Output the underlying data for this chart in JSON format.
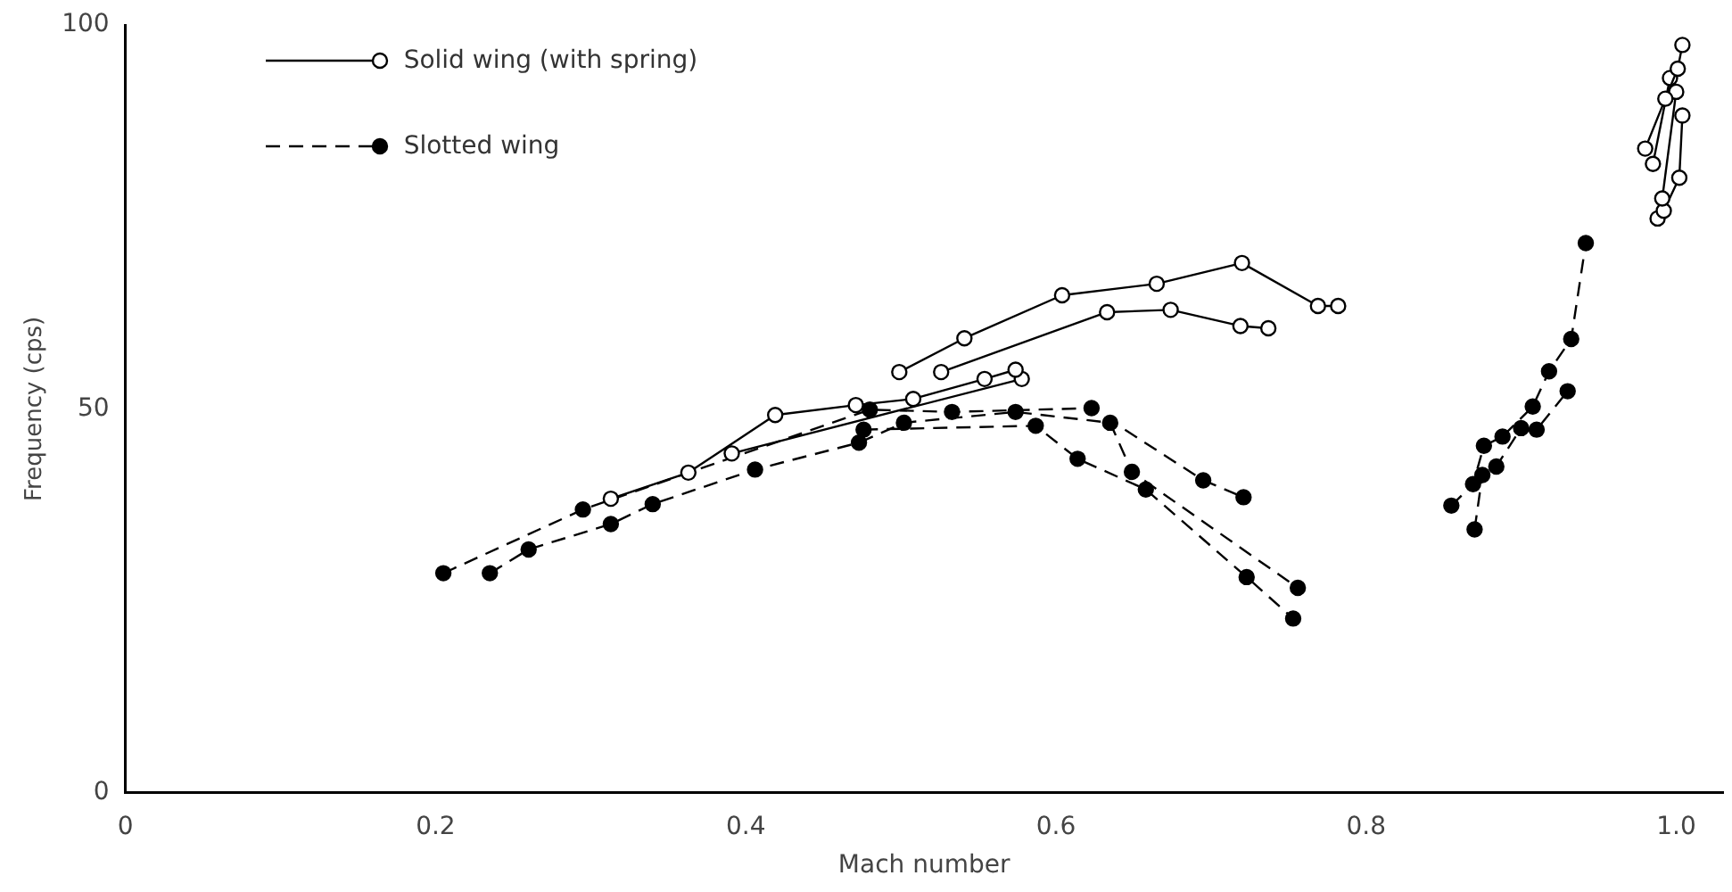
{
  "chart_data": {
    "type": "line",
    "xlabel": "Mach number",
    "ylabel": "Frequency (cps)",
    "xlim": [
      0,
      1.03
    ],
    "xticks": [
      0,
      0.2,
      0.4,
      0.6,
      0.8,
      {
        "value": 1,
        "label": "1.0"
      }
    ],
    "ylim": [
      0,
      100
    ],
    "yticks": [
      0,
      50,
      100
    ],
    "grid": false,
    "legend": "top left",
    "marker": "circle",
    "series": [
      {
        "name": "Solid wing (with spring)",
        "color": "#000000",
        "line_style": "solid",
        "x": [
          0.313,
          0.363,
          0.419,
          0.471,
          0.508,
          0.554,
          0.574
        ],
        "values": [
          38.3,
          41.7,
          49.2,
          50.5,
          51.3,
          53.9,
          55.1
        ]
      },
      {
        "color": "#000000",
        "line_style": "solid",
        "x": [
          0.391,
          0.578
        ],
        "values": [
          44.2,
          53.9
        ]
      },
      {
        "color": "#000000",
        "line_style": "solid",
        "x": [
          0.499,
          0.541,
          0.604,
          0.665,
          0.72,
          0.769,
          0.782
        ],
        "values": [
          54.8,
          59.2,
          64.8,
          66.3,
          69,
          63.4,
          63.4
        ]
      },
      {
        "color": "#000000",
        "line_style": "solid",
        "x": [
          0.526,
          0.633,
          0.674,
          0.719,
          0.737
        ],
        "values": [
          54.8,
          62.6,
          62.9,
          60.8,
          60.5
        ]
      },
      {
        "color": "#000000",
        "line_style": "solid",
        "x": [
          0.98,
          0.993,
          1.001,
          1.004
        ],
        "values": [
          83.9,
          90.4,
          94.3,
          97.4
        ]
      },
      {
        "color": "#000000",
        "line_style": "solid",
        "x": [
          0.985,
          0.996
        ],
        "values": [
          81.9,
          93.1
        ]
      },
      {
        "color": "#000000",
        "line_style": "solid",
        "x": [
          0.991,
          1.0
        ],
        "values": [
          77.4,
          91.3
        ]
      },
      {
        "color": "#000000",
        "line_style": "solid",
        "x": [
          0.988,
          0.992,
          1.002,
          1.004
        ],
        "values": [
          74.8,
          75.8,
          80.1,
          88.2
        ]
      },
      {
        "name": "Slotted wing",
        "color": "#000000",
        "line_style": "dashed",
        "x": [
          0.205,
          0.295,
          0.48,
          0.533,
          0.623,
          0.695,
          0.721
        ],
        "values": [
          28.6,
          36.9,
          49.9,
          49.6,
          50.1,
          40.7,
          38.5
        ]
      },
      {
        "color": "#000000",
        "line_style": "dashed",
        "x": [
          0.235,
          0.26,
          0.313,
          0.34,
          0.406,
          0.473,
          0.502,
          0.574,
          0.635,
          0.649,
          0.756
        ],
        "values": [
          28.6,
          31.7,
          35.0,
          37.6,
          42.1,
          45.6,
          48.2,
          49.6,
          48.2,
          41.8,
          26.7
        ]
      },
      {
        "color": "#000000",
        "line_style": "dashed",
        "x": [
          0.476,
          0.587,
          0.614,
          0.658,
          0.723,
          0.753
        ],
        "values": [
          47.3,
          47.8,
          43.5,
          39.5,
          28.1,
          22.7
        ]
      },
      {
        "color": "#000000",
        "line_style": "dashed",
        "x": [
          0.855,
          0.869,
          0.876,
          0.888,
          0.9075,
          0.918,
          0.9323,
          0.9417
        ],
        "values": [
          37.4,
          40.2,
          45.2,
          46.4,
          50.3,
          54.9,
          59.1,
          71.6
        ]
      },
      {
        "color": "#000000",
        "line_style": "dashed",
        "x": [
          0.87,
          0.875,
          0.884,
          0.9,
          0.91,
          0.93
        ],
        "values": [
          34.3,
          41.4,
          42.5,
          47.5,
          47.3,
          52.3
        ]
      }
    ]
  }
}
